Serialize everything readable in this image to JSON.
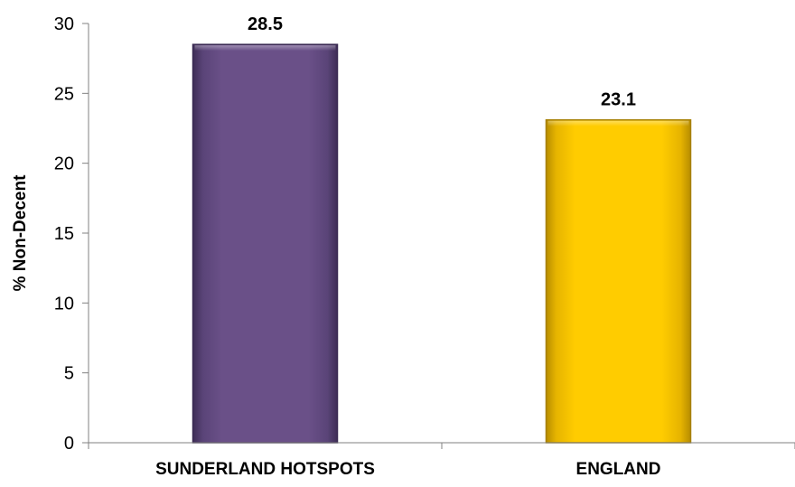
{
  "chart_data": {
    "type": "bar",
    "title": "",
    "xlabel": "",
    "ylabel": "% Non-Decent",
    "categories": [
      "SUNDERLAND HOTSPOTS",
      "ENGLAND"
    ],
    "values": [
      28.5,
      23.1
    ],
    "data_labels": [
      "28.5",
      "23.1"
    ],
    "bar_colors": [
      "#6a5088",
      "#ffcc00"
    ],
    "bar_edge_colors": [
      "#3a2a52",
      "#a67f00"
    ],
    "ylim": [
      0,
      30
    ],
    "yticks": [
      0,
      5,
      10,
      15,
      20,
      25,
      30
    ],
    "ytick_labels": [
      "0",
      "5",
      "10",
      "15",
      "20",
      "25",
      "30"
    ],
    "grid": false,
    "legend": "none"
  }
}
